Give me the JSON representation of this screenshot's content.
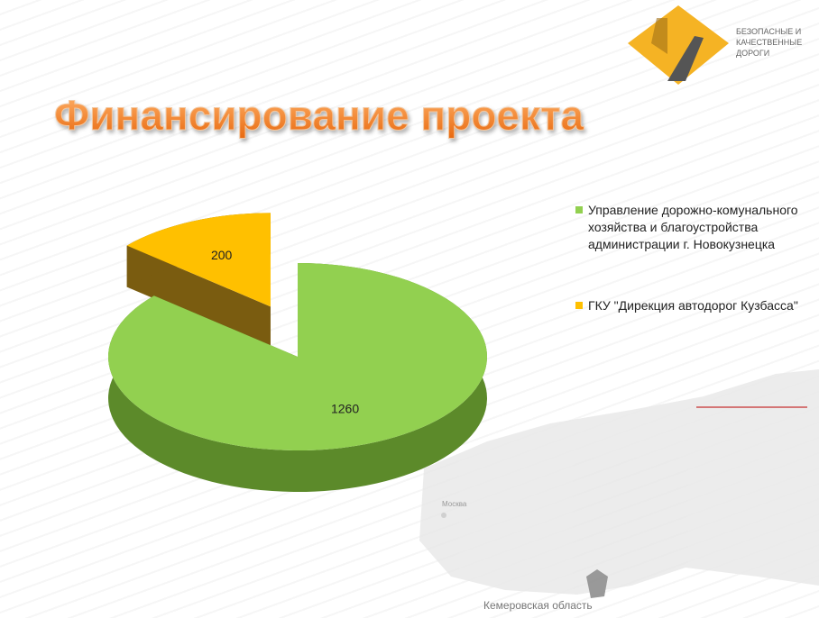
{
  "chart_data": {
    "type": "pie",
    "title": "Финансирование проекта",
    "categories": [
      "Управление дорожно-комунального хозяйства и благоустройства администрации г. Новокузнецка",
      "ГКУ \"Дирекция автодорог Кузбасса\""
    ],
    "values": [
      1260,
      200
    ],
    "colors": [
      "#92d050",
      "#ffc000"
    ],
    "side_colors": [
      "#5c8a2a",
      "#7a5c10"
    ],
    "exploded": [
      false,
      true
    ]
  },
  "logo": {
    "lines": [
      "БЕЗОПАСНЫЕ И",
      "КАЧЕСТВЕННЫЕ",
      "ДОРОГИ"
    ]
  },
  "map": {
    "city": "Москва",
    "region": "Кемеровская область"
  }
}
